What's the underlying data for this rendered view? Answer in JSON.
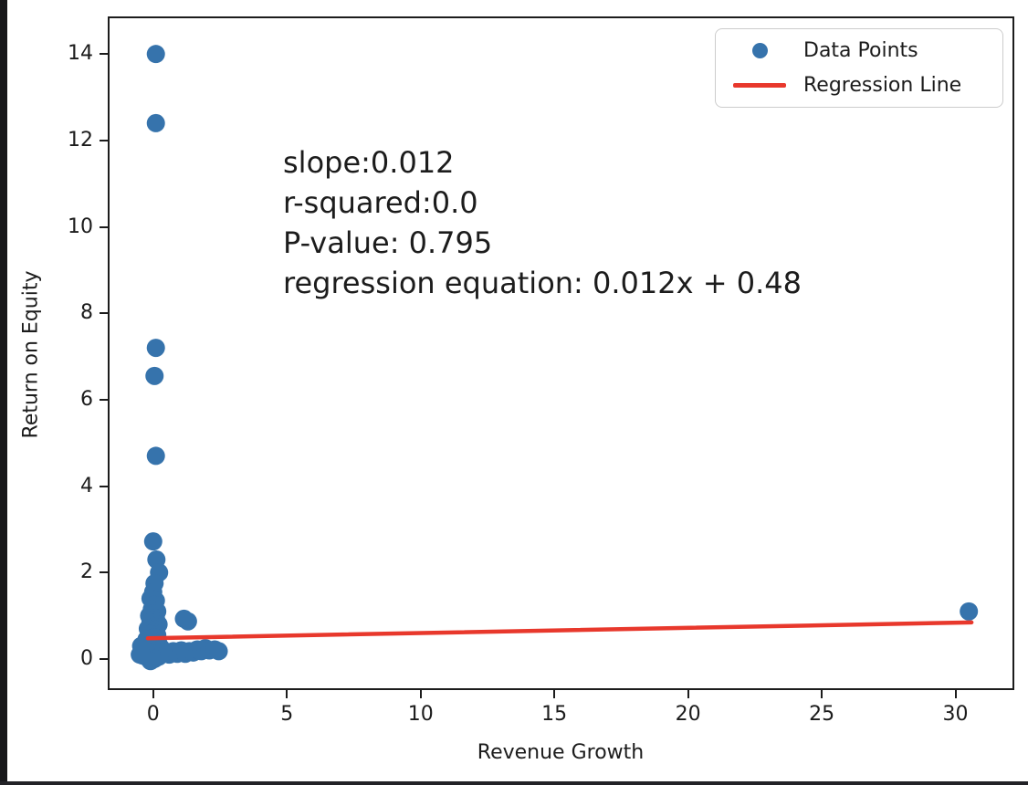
{
  "window": {
    "left_edge_color": "#17171a",
    "bottom_edge_color": "#232327",
    "background": "#ffffff"
  },
  "chart_data": {
    "type": "scatter",
    "title": "",
    "xlabel": "Revenue Growth",
    "ylabel": "Return on Equity",
    "xlim": [
      -1.7,
      32.2
    ],
    "ylim": [
      -0.72,
      14.87
    ],
    "x_ticks": [
      0,
      5,
      10,
      15,
      20,
      25,
      30
    ],
    "y_ticks": [
      0,
      2,
      4,
      6,
      8,
      10,
      12,
      14
    ],
    "grid": false,
    "legend_position": "upper right",
    "point_color": "#3673ac",
    "line_color": "#e8382c",
    "series": [
      {
        "name": "Data Points",
        "type": "scatter",
        "color": "#3673ac",
        "points": [
          [
            0.1,
            14.0
          ],
          [
            0.1,
            12.4
          ],
          [
            0.1,
            7.2
          ],
          [
            0.05,
            6.55
          ],
          [
            0.1,
            4.7
          ],
          [
            0.0,
            2.72
          ],
          [
            0.12,
            2.3
          ],
          [
            0.22,
            2.0
          ],
          [
            0.05,
            1.75
          ],
          [
            0.0,
            1.55
          ],
          [
            -0.1,
            1.4
          ],
          [
            0.1,
            1.35
          ],
          [
            0.05,
            1.25
          ],
          [
            -0.05,
            1.15
          ],
          [
            0.15,
            1.1
          ],
          [
            0.0,
            1.05
          ],
          [
            -0.15,
            1.0
          ],
          [
            0.1,
            0.95
          ],
          [
            1.15,
            0.93
          ],
          [
            1.3,
            0.87
          ],
          [
            0.0,
            0.9
          ],
          [
            -0.1,
            0.85
          ],
          [
            0.2,
            0.8
          ],
          [
            0.05,
            0.75
          ],
          [
            -0.2,
            0.7
          ],
          [
            0.1,
            0.68
          ],
          [
            0.0,
            0.62
          ],
          [
            -0.1,
            0.58
          ],
          [
            0.15,
            0.55
          ],
          [
            0.05,
            0.5
          ],
          [
            -0.25,
            0.45
          ],
          [
            0.1,
            0.42
          ],
          [
            0.0,
            0.38
          ],
          [
            0.2,
            0.35
          ],
          [
            -0.15,
            0.3
          ],
          [
            0.05,
            0.28
          ],
          [
            0.3,
            0.25
          ],
          [
            -0.3,
            0.2
          ],
          [
            0.1,
            0.18
          ],
          [
            0.45,
            0.15
          ],
          [
            0.0,
            0.12
          ],
          [
            -0.4,
            0.08
          ],
          [
            0.2,
            0.05
          ],
          [
            -0.2,
            0.02
          ],
          [
            0.05,
            0.0
          ],
          [
            -0.1,
            -0.05
          ],
          [
            -0.5,
            0.1
          ],
          [
            -0.45,
            0.3
          ],
          [
            0.6,
            0.1
          ],
          [
            0.75,
            0.18
          ],
          [
            0.9,
            0.12
          ],
          [
            1.05,
            0.2
          ],
          [
            1.2,
            0.12
          ],
          [
            1.35,
            0.18
          ],
          [
            1.5,
            0.15
          ],
          [
            1.65,
            0.22
          ],
          [
            1.8,
            0.18
          ],
          [
            1.95,
            0.25
          ],
          [
            2.1,
            0.2
          ],
          [
            2.3,
            0.22
          ],
          [
            2.45,
            0.18
          ],
          [
            30.5,
            1.1
          ]
        ]
      },
      {
        "name": "Regression Line",
        "type": "line",
        "color": "#e8382c",
        "points": [
          [
            -0.2,
            0.478
          ],
          [
            30.6,
            0.847
          ]
        ]
      }
    ],
    "regression": {
      "slope": 0.012,
      "r_squared": 0.0,
      "p_value": 0.795,
      "intercept": 0.48,
      "equation": "0.012x + 0.48"
    },
    "annotation": {
      "lines": [
        "slope:0.012",
        "r-squared:0.0",
        "P-value: 0.795",
        "regression equation: 0.012x + 0.48"
      ]
    },
    "legend": {
      "entries": [
        {
          "label": "Data Points",
          "marker": "dot",
          "color": "#3673ac"
        },
        {
          "label": "Regression Line",
          "marker": "line",
          "color": "#e8382c"
        }
      ]
    }
  }
}
